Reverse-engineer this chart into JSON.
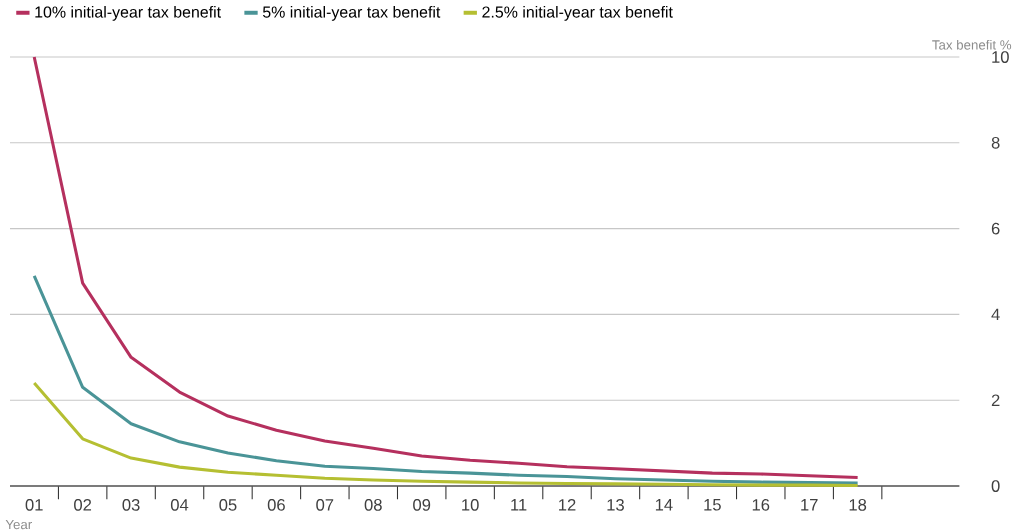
{
  "chart_data": {
    "type": "line",
    "xlabel": "Year",
    "ylabel": "Tax benefit %",
    "categories": [
      "01",
      "02",
      "03",
      "04",
      "05",
      "06",
      "07",
      "08",
      "09",
      "10",
      "11",
      "12",
      "13",
      "14",
      "15",
      "16",
      "17",
      "18"
    ],
    "series": [
      {
        "name": "10% initial-year tax benefit",
        "color": "#b5305e",
        "values": [
          10,
          4.73,
          3.0,
          2.19,
          1.63,
          1.3,
          1.05,
          0.88,
          0.7,
          0.6,
          0.53,
          0.45,
          0.4,
          0.35,
          0.3,
          0.28,
          0.24,
          0.2
        ]
      },
      {
        "name": "5% initial-year tax benefit",
        "color": "#4a9497",
        "values": [
          4.9,
          2.3,
          1.45,
          1.03,
          0.77,
          0.59,
          0.46,
          0.41,
          0.34,
          0.3,
          0.25,
          0.22,
          0.17,
          0.14,
          0.11,
          0.09,
          0.08,
          0.07
        ]
      },
      {
        "name": "2.5% initial-year tax benefit",
        "color": "#b5bf32",
        "values": [
          2.4,
          1.1,
          0.65,
          0.44,
          0.32,
          0.25,
          0.18,
          0.14,
          0.11,
          0.09,
          0.07,
          0.06,
          0.05,
          0.04,
          0.03,
          0.02,
          0.02,
          0.01
        ]
      }
    ],
    "ylim": [
      0,
      10
    ],
    "yticks": [
      0,
      2,
      4,
      6,
      8,
      10
    ],
    "grid": "y",
    "legend": "top left"
  }
}
